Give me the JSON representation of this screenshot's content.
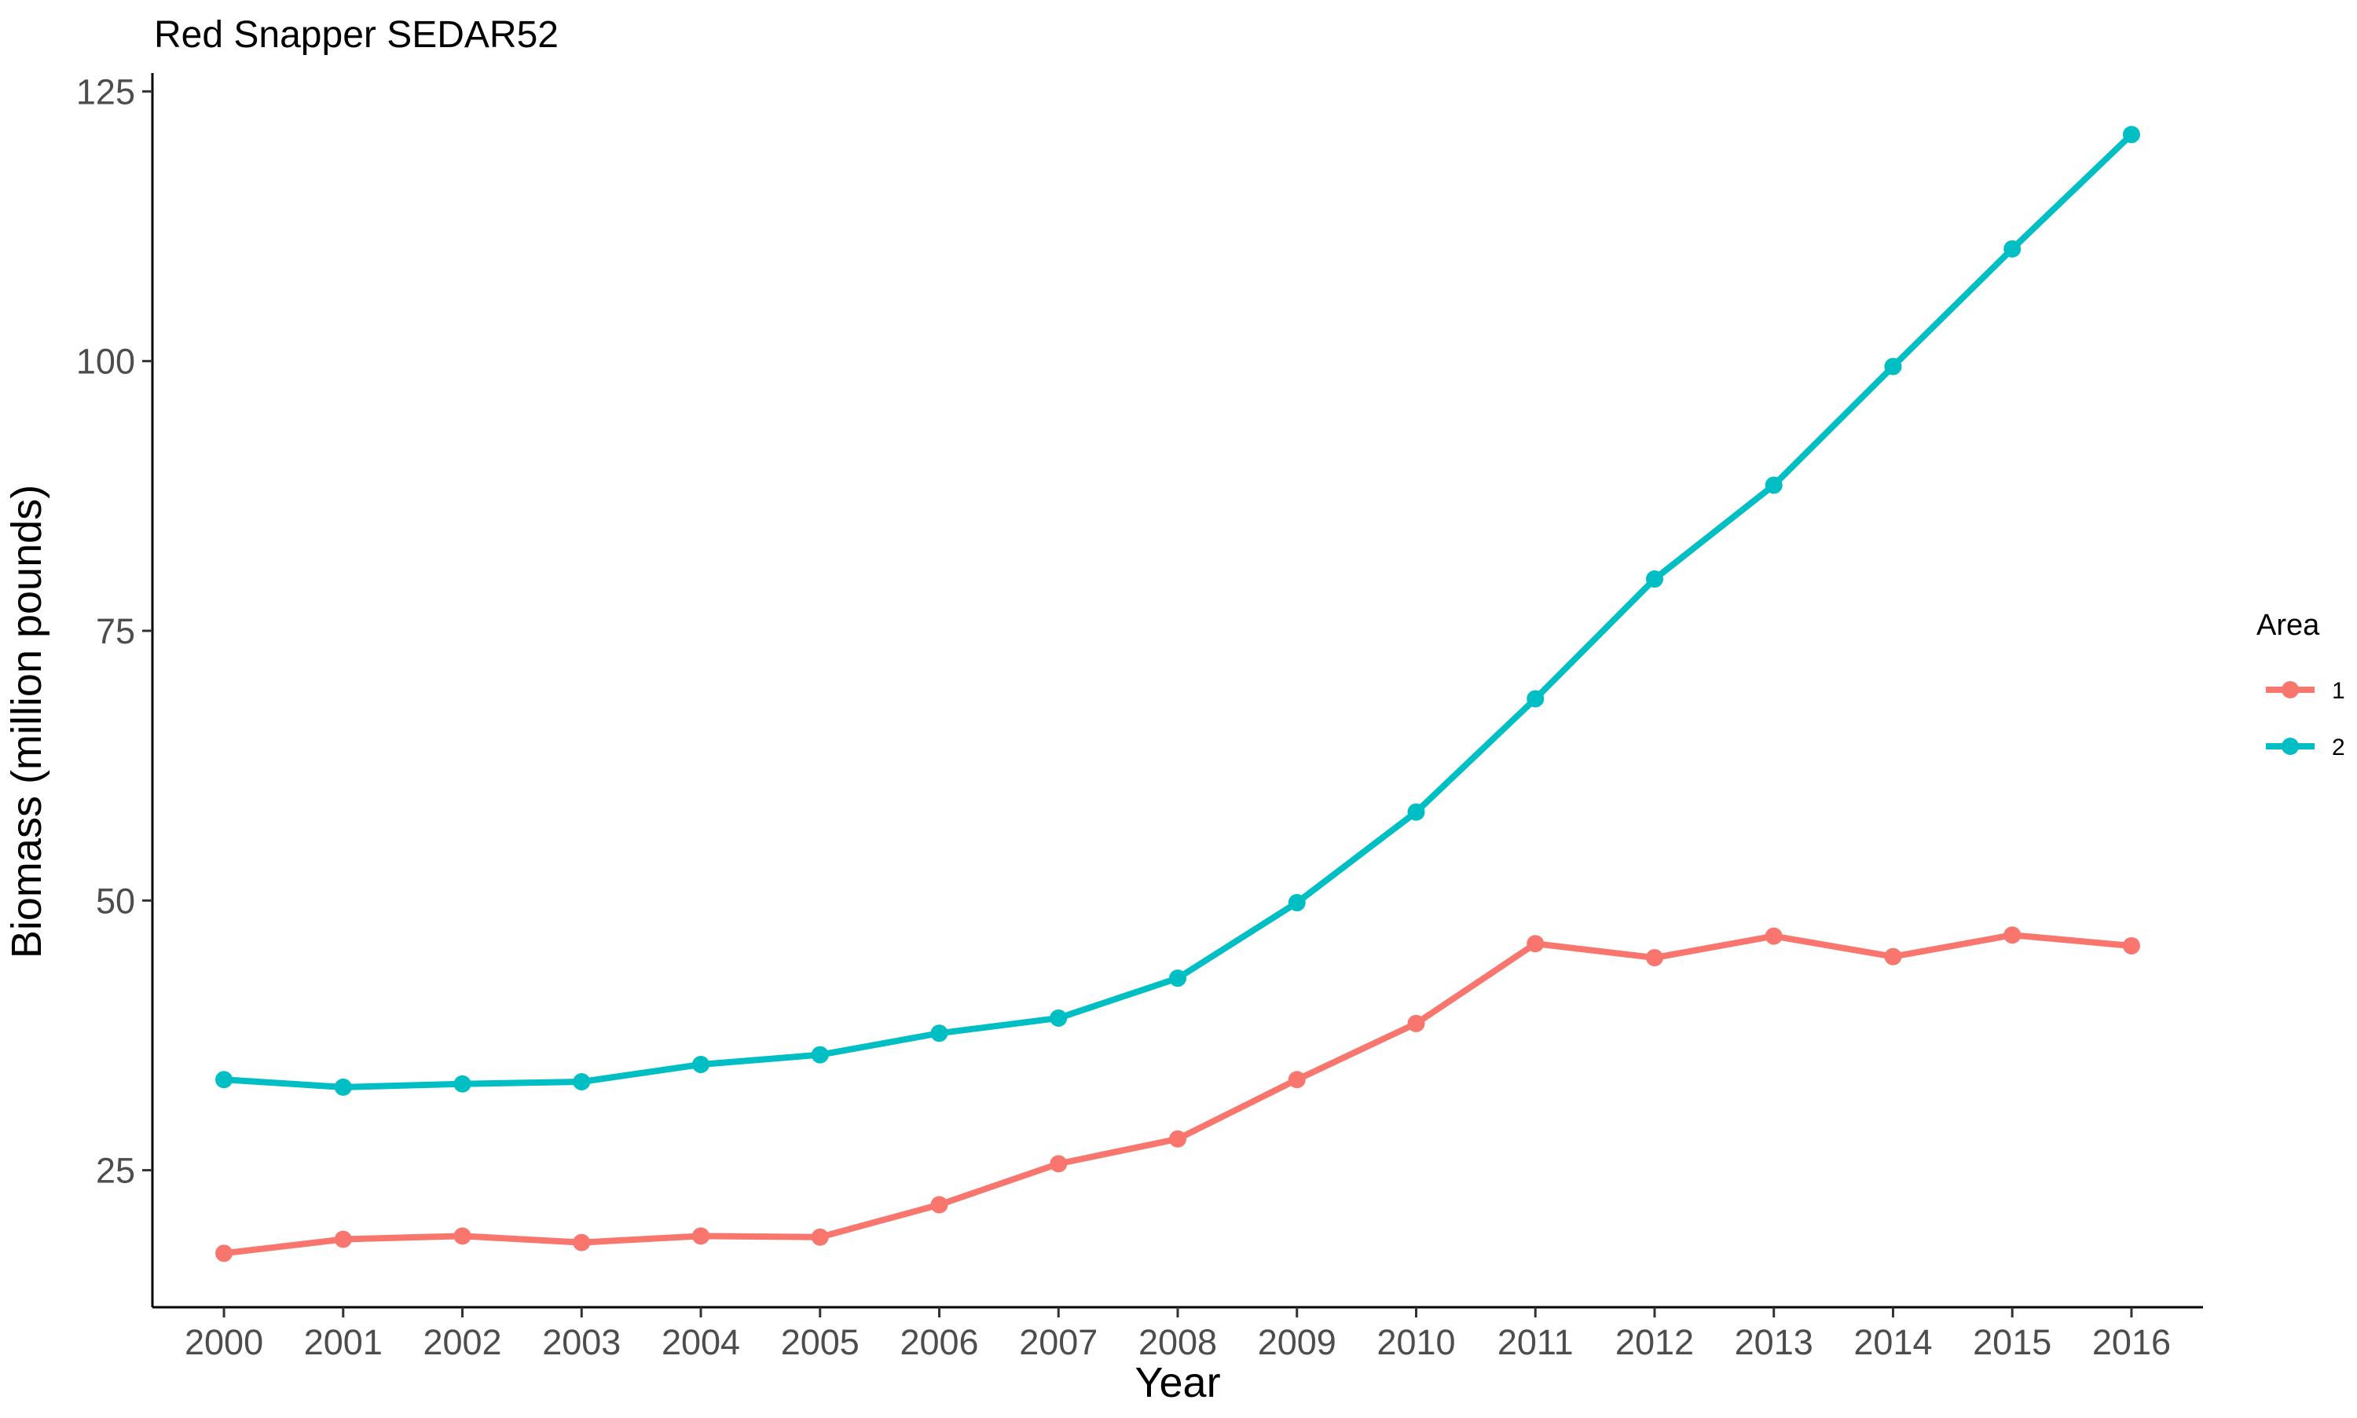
{
  "chart_data": {
    "type": "line",
    "title": "Red Snapper SEDAR52",
    "xlabel": "Year",
    "ylabel": "Biomass (million pounds)",
    "x": [
      2000,
      2001,
      2002,
      2003,
      2004,
      2005,
      2006,
      2007,
      2008,
      2009,
      2010,
      2011,
      2012,
      2013,
      2014,
      2015,
      2016
    ],
    "x_ticks": [
      "2000",
      "2001",
      "2002",
      "2003",
      "2004",
      "2005",
      "2006",
      "2007",
      "2008",
      "2009",
      "2010",
      "2011",
      "2012",
      "2013",
      "2014",
      "2015",
      "2016"
    ],
    "y_ticks": [
      25,
      50,
      75,
      100,
      125
    ],
    "ylim": [
      12.3,
      126.7
    ],
    "grid": false,
    "legend": {
      "title": "Area",
      "position": "right"
    },
    "series": [
      {
        "name": "1",
        "color": "#F8766D",
        "values": [
          17.3,
          18.6,
          18.9,
          18.3,
          18.9,
          18.8,
          21.8,
          25.6,
          27.9,
          33.4,
          38.6,
          46.0,
          44.7,
          46.7,
          44.8,
          46.8,
          45.8
        ]
      },
      {
        "name": "2",
        "color": "#00BFC4",
        "values": [
          33.4,
          32.7,
          33.0,
          33.2,
          34.8,
          35.7,
          37.7,
          39.1,
          42.8,
          49.8,
          58.2,
          68.7,
          79.8,
          88.5,
          99.5,
          110.4,
          121.0
        ]
      }
    ]
  }
}
